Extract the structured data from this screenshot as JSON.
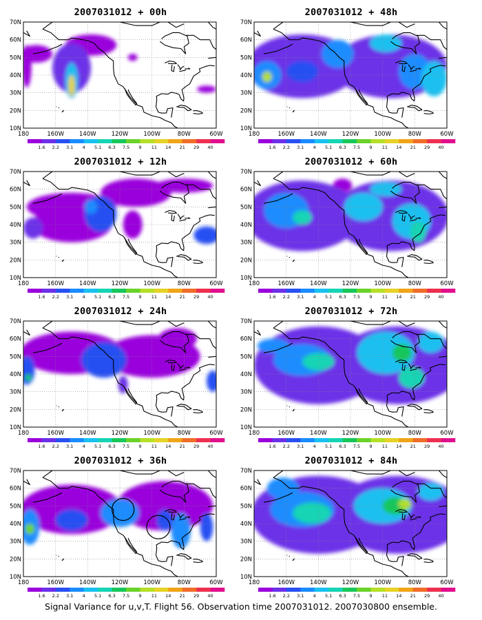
{
  "figure": {
    "caption": "Signal Variance for u,v,T. Flight 56. Observation time 2007031012. 2007030800 ensemble."
  },
  "axes": {
    "lat_labels": [
      "70N",
      "60N",
      "50N",
      "40N",
      "30N",
      "20N",
      "10N"
    ],
    "lon_labels": [
      "180",
      "160W",
      "140W",
      "120W",
      "100W",
      "80W",
      "60W"
    ]
  },
  "colorbar": {
    "labels": [
      "1.6",
      "2.2",
      "3.1",
      "4",
      "5.1",
      "6.3",
      "7.5",
      "9",
      "11",
      "14",
      "21",
      "29",
      "40"
    ],
    "colors": [
      "#9a00dc",
      "#6c30e8",
      "#2850f2",
      "#1a8cff",
      "#1ac0f0",
      "#16d4b4",
      "#18c65a",
      "#6ad22a",
      "#b4e028",
      "#e6d226",
      "#f0a418",
      "#f06c28",
      "#ee3050",
      "#e0108c"
    ]
  },
  "panels": [
    {
      "title": "2007031012 + 00h",
      "col": 0,
      "row": 0,
      "intensity": 0
    },
    {
      "title": "2007031012 + 48h",
      "col": 1,
      "row": 0,
      "intensity": 4
    },
    {
      "title": "2007031012 + 12h",
      "col": 0,
      "row": 1,
      "intensity": 1
    },
    {
      "title": "2007031012 + 60h",
      "col": 1,
      "row": 1,
      "intensity": 5
    },
    {
      "title": "2007031012 + 24h",
      "col": 0,
      "row": 2,
      "intensity": 2
    },
    {
      "title": "2007031012 + 72h",
      "col": 1,
      "row": 2,
      "intensity": 6
    },
    {
      "title": "2007031012 + 36h",
      "col": 0,
      "row": 3,
      "intensity": 3,
      "circles": true
    },
    {
      "title": "2007031012 + 84h",
      "col": 1,
      "row": 3,
      "intensity": 7
    }
  ]
}
